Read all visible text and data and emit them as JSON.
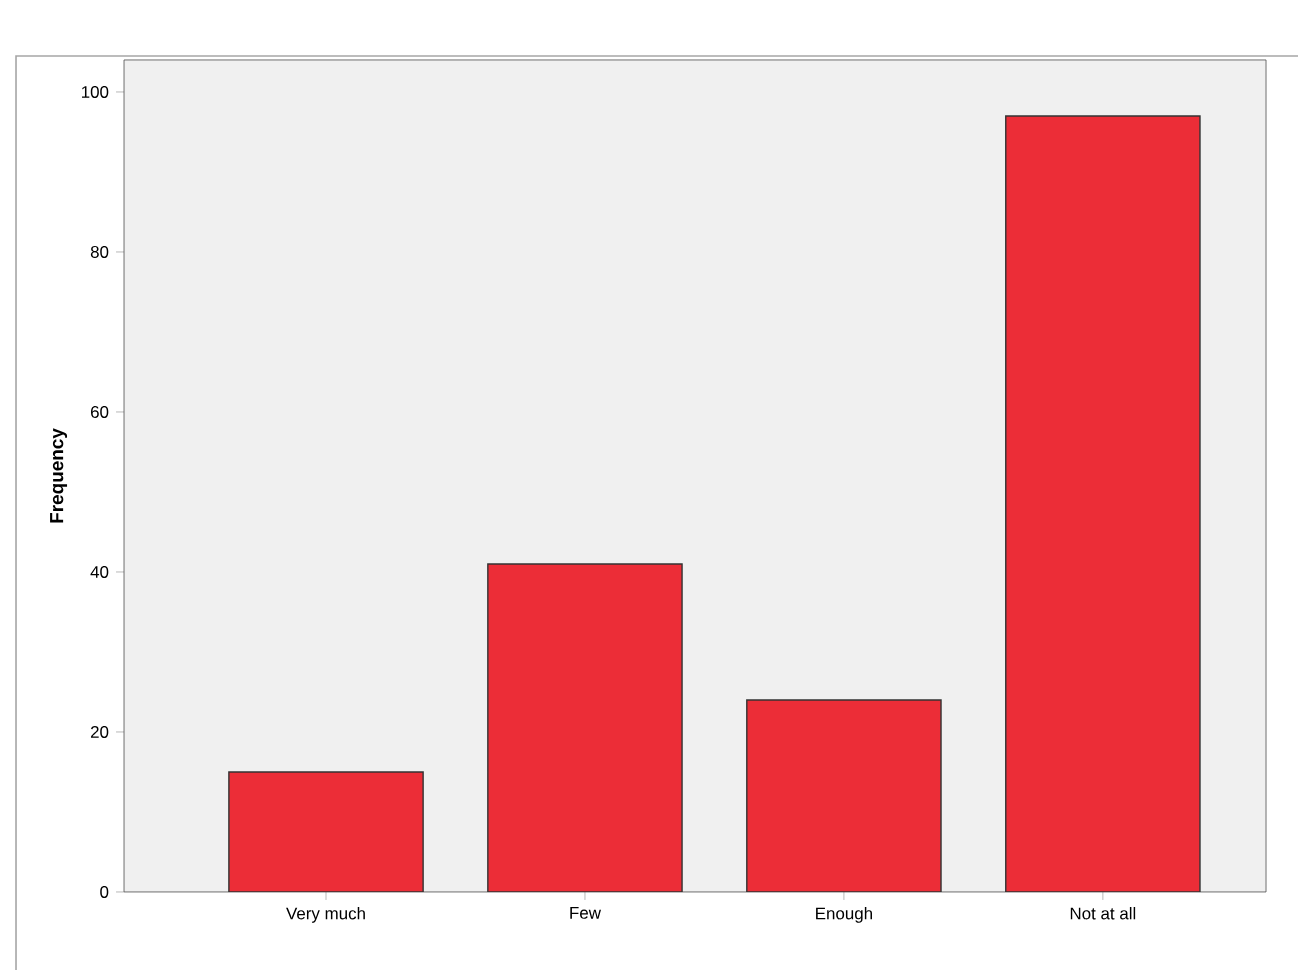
{
  "chart_data": {
    "type": "bar",
    "ylabel": "Frequency",
    "categories": [
      "Very much",
      "Few",
      "Enough",
      "Not at all"
    ],
    "values": [
      15,
      41,
      24,
      97
    ],
    "color": "#ec2d37",
    "ylim": [
      0,
      104
    ],
    "yticks": [
      0,
      20,
      40,
      60,
      80,
      100
    ]
  }
}
